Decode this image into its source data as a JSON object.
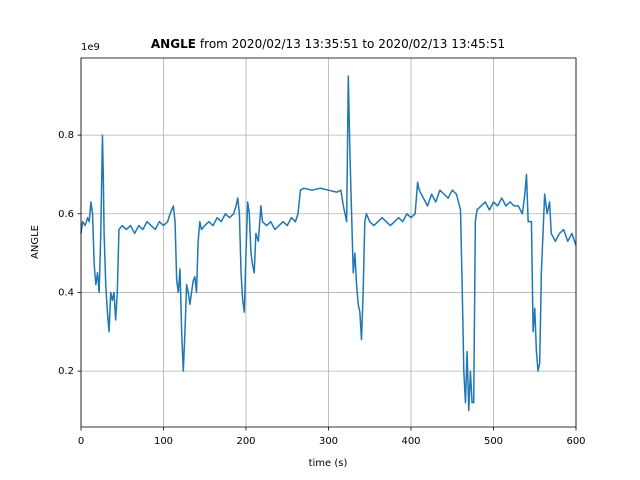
{
  "chart_data": {
    "type": "line",
    "title": [
      "ANGLE",
      "from 2020/02/13 13:35:51 to 2020/02/13 13:45:51"
    ],
    "x_label": "time (s)",
    "y_label": "ANGLE",
    "y_offset_text": "1e9",
    "color": "#1f77b4",
    "grid": true,
    "xlim": [
      0,
      600
    ],
    "xticks": [
      0,
      100,
      200,
      300,
      400,
      500,
      600
    ],
    "ylim": [
      0.058,
      0.996
    ],
    "yticks": [
      0.2,
      0.4,
      0.6,
      0.8
    ],
    "x": [
      0,
      2,
      5,
      8,
      10,
      12,
      14,
      16,
      18,
      20,
      22,
      24,
      26,
      27,
      28,
      30,
      32,
      34,
      36,
      38,
      40,
      42,
      44,
      46,
      50,
      55,
      60,
      65,
      70,
      75,
      80,
      85,
      90,
      95,
      100,
      105,
      108,
      112,
      114,
      116,
      118,
      120,
      122,
      124,
      126,
      128,
      130,
      132,
      134,
      136,
      138,
      140,
      142,
      144,
      146,
      150,
      155,
      160,
      165,
      170,
      175,
      180,
      185,
      188,
      190,
      192,
      194,
      196,
      198,
      200,
      202,
      204,
      206,
      208,
      210,
      212,
      215,
      218,
      220,
      225,
      230,
      235,
      240,
      245,
      250,
      255,
      260,
      263,
      266,
      270,
      280,
      290,
      300,
      310,
      315,
      318,
      320,
      322,
      324,
      326,
      328,
      330,
      332,
      334,
      336,
      338,
      340,
      342,
      344,
      346,
      350,
      355,
      360,
      365,
      370,
      375,
      380,
      385,
      390,
      395,
      400,
      405,
      408,
      410,
      415,
      420,
      425,
      430,
      435,
      440,
      445,
      450,
      455,
      460,
      462,
      464,
      466,
      468,
      470,
      472,
      474,
      476,
      478,
      480,
      485,
      490,
      495,
      500,
      505,
      510,
      515,
      520,
      525,
      530,
      535,
      538,
      540,
      542,
      546,
      548,
      550,
      552,
      554,
      556,
      558,
      560,
      562,
      565,
      568,
      570,
      575,
      580,
      585,
      590,
      595,
      600
    ],
    "values": [
      0.55,
      0.58,
      0.57,
      0.59,
      0.58,
      0.63,
      0.6,
      0.47,
      0.42,
      0.45,
      0.4,
      0.55,
      0.8,
      0.7,
      0.55,
      0.42,
      0.35,
      0.3,
      0.4,
      0.38,
      0.4,
      0.33,
      0.4,
      0.56,
      0.57,
      0.56,
      0.57,
      0.55,
      0.57,
      0.56,
      0.58,
      0.57,
      0.56,
      0.58,
      0.57,
      0.58,
      0.6,
      0.62,
      0.58,
      0.43,
      0.4,
      0.46,
      0.3,
      0.2,
      0.3,
      0.42,
      0.4,
      0.37,
      0.4,
      0.43,
      0.44,
      0.4,
      0.53,
      0.58,
      0.56,
      0.57,
      0.58,
      0.57,
      0.59,
      0.58,
      0.6,
      0.59,
      0.6,
      0.62,
      0.64,
      0.6,
      0.45,
      0.38,
      0.35,
      0.5,
      0.63,
      0.6,
      0.5,
      0.47,
      0.45,
      0.55,
      0.53,
      0.62,
      0.58,
      0.57,
      0.58,
      0.56,
      0.57,
      0.58,
      0.57,
      0.59,
      0.58,
      0.6,
      0.66,
      0.665,
      0.66,
      0.665,
      0.66,
      0.655,
      0.66,
      0.62,
      0.6,
      0.58,
      0.95,
      0.75,
      0.6,
      0.45,
      0.5,
      0.42,
      0.37,
      0.35,
      0.28,
      0.4,
      0.58,
      0.6,
      0.58,
      0.57,
      0.58,
      0.59,
      0.58,
      0.57,
      0.58,
      0.59,
      0.58,
      0.6,
      0.59,
      0.6,
      0.68,
      0.66,
      0.64,
      0.62,
      0.65,
      0.63,
      0.66,
      0.65,
      0.64,
      0.66,
      0.65,
      0.61,
      0.42,
      0.2,
      0.12,
      0.25,
      0.1,
      0.2,
      0.12,
      0.12,
      0.58,
      0.61,
      0.62,
      0.63,
      0.61,
      0.63,
      0.62,
      0.64,
      0.62,
      0.63,
      0.62,
      0.62,
      0.6,
      0.65,
      0.7,
      0.58,
      0.58,
      0.3,
      0.36,
      0.25,
      0.2,
      0.22,
      0.45,
      0.55,
      0.65,
      0.6,
      0.63,
      0.55,
      0.53,
      0.55,
      0.56,
      0.53,
      0.55,
      0.52
    ]
  }
}
